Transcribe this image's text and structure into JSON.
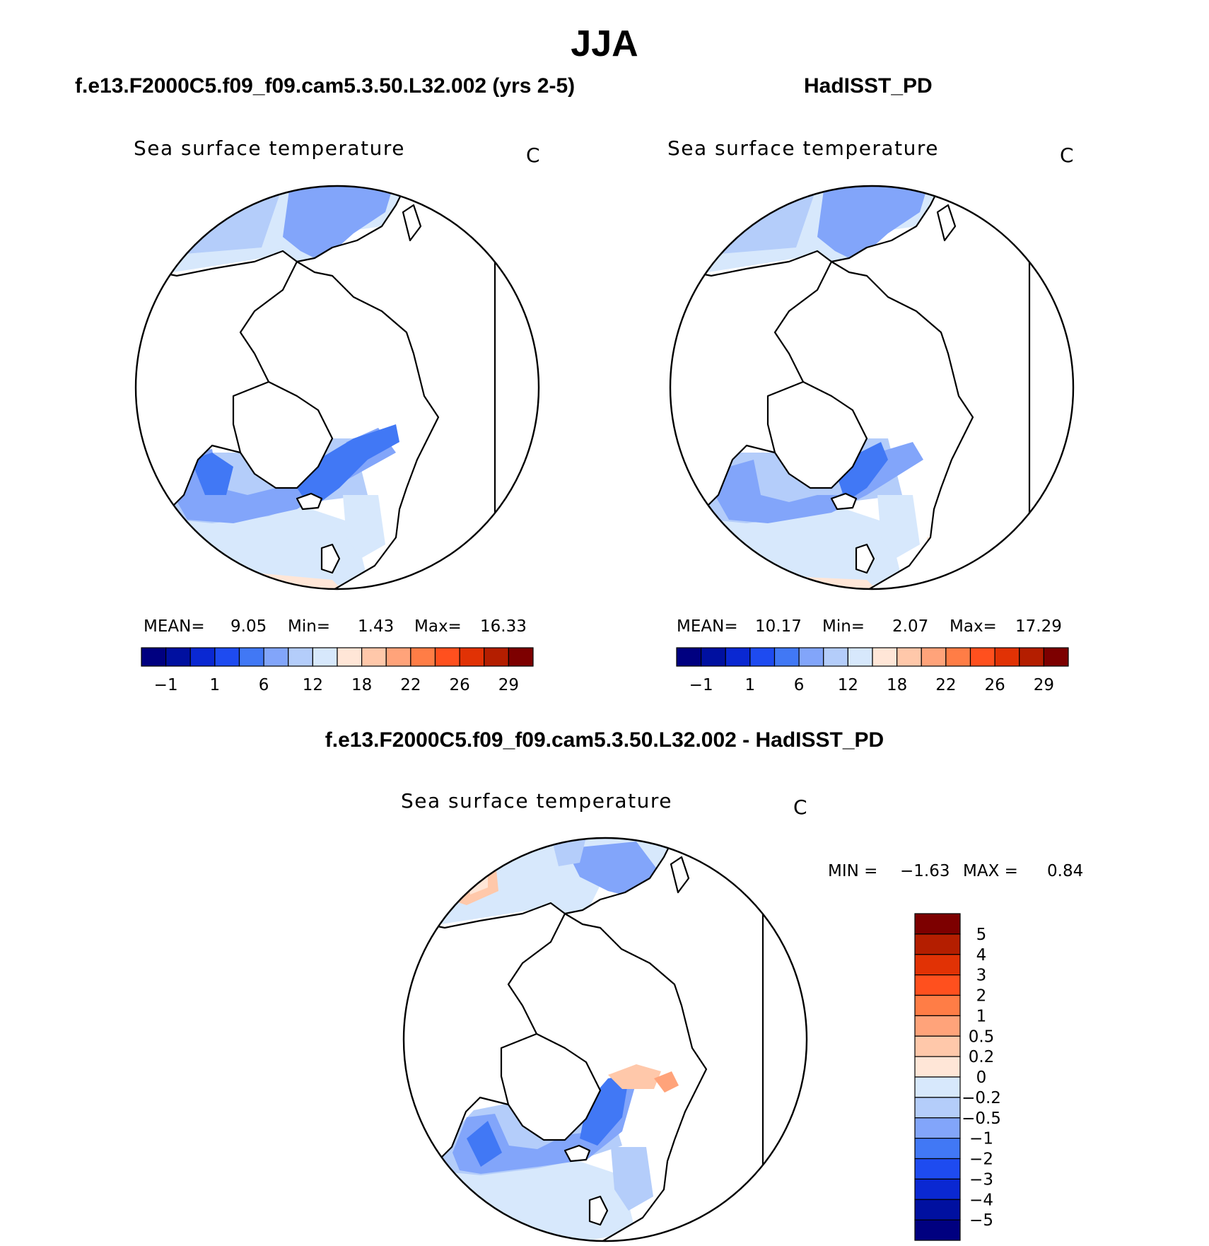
{
  "figure": {
    "title": "JJA",
    "panel_a_title": "f.e13.F2000C5.f09_f09.cam5.3.50.L32.002 (yrs 2-5)",
    "panel_b_title": "HadISST_PD",
    "panel_c_title": "f.e13.F2000C5.f09_f09.cam5.3.50.L32.002 - HadISST_PD"
  },
  "panels": {
    "a": {
      "variable": "Sea surface temperature",
      "units": "C",
      "stats": {
        "mean_label": "MEAN=",
        "mean": "9.05",
        "min_label": "Min=",
        "min": "1.43",
        "max_label": "Max=",
        "max": "16.33"
      }
    },
    "b": {
      "variable": "Sea surface temperature",
      "units": "C",
      "stats": {
        "mean_label": "MEAN=",
        "mean": "10.17",
        "min_label": "Min=",
        "min": "2.07",
        "max_label": "Max=",
        "max": "17.29"
      }
    },
    "c": {
      "variable": "Sea surface temperature",
      "units": "C",
      "stats": {
        "min_label": "MIN =",
        "min": "−1.63",
        "max_label": "MAX =",
        "max": "0.84"
      }
    }
  },
  "colors": {
    "abs_scale": [
      "#000080",
      "#0010a0",
      "#0a28d2",
      "#1e4bf0",
      "#4178f5",
      "#82a5fa",
      "#b4cdfa",
      "#d7e8fc",
      "#ffe6d7",
      "#ffc8aa",
      "#ffa37a",
      "#ff7d46",
      "#ff501e",
      "#e13205",
      "#b41e00",
      "#7d0000"
    ],
    "diff_scale_top_to_bottom": [
      "#7d0000",
      "#b41e00",
      "#e13205",
      "#ff501e",
      "#ff7d46",
      "#ffa37a",
      "#ffc8aa",
      "#ffe6d7",
      "#d7e8fc",
      "#b4cdfa",
      "#82a5fa",
      "#4178f5",
      "#1e4bf0",
      "#0a28d2",
      "#0010a0",
      "#000080"
    ],
    "land": "#ffffff",
    "coast": "#000000"
  },
  "chart_data": [
    {
      "type": "heatmap",
      "projection": "north-polar-stereographic",
      "title": "Sea surface temperature",
      "units": "C",
      "region": "Arctic / North Atlantic / North Pacific",
      "colorbar_orientation": "horizontal",
      "colorbar_ticks": [
        "−1",
        "1",
        "6",
        "12",
        "18",
        "22",
        "26",
        "29"
      ],
      "mean": 9.05,
      "min": 1.43,
      "max": 16.33
    },
    {
      "type": "heatmap",
      "projection": "north-polar-stereographic",
      "title": "Sea surface temperature",
      "units": "C",
      "region": "Arctic / North Atlantic / North Pacific",
      "colorbar_orientation": "horizontal",
      "colorbar_ticks": [
        "−1",
        "1",
        "6",
        "12",
        "18",
        "22",
        "26",
        "29"
      ],
      "mean": 10.17,
      "min": 2.07,
      "max": 17.29
    },
    {
      "type": "heatmap",
      "projection": "north-polar-stereographic",
      "title": "Sea surface temperature",
      "units": "C",
      "region": "Arctic / North Atlantic / North Pacific",
      "colorbar_orientation": "vertical",
      "colorbar_ticks": [
        "5",
        "4",
        "3",
        "2",
        "1",
        "0.5",
        "0.2",
        "0",
        "−0.2",
        "−0.5",
        "−1",
        "−2",
        "−3",
        "−4",
        "−5"
      ],
      "min": -1.63,
      "max": 0.84
    }
  ]
}
